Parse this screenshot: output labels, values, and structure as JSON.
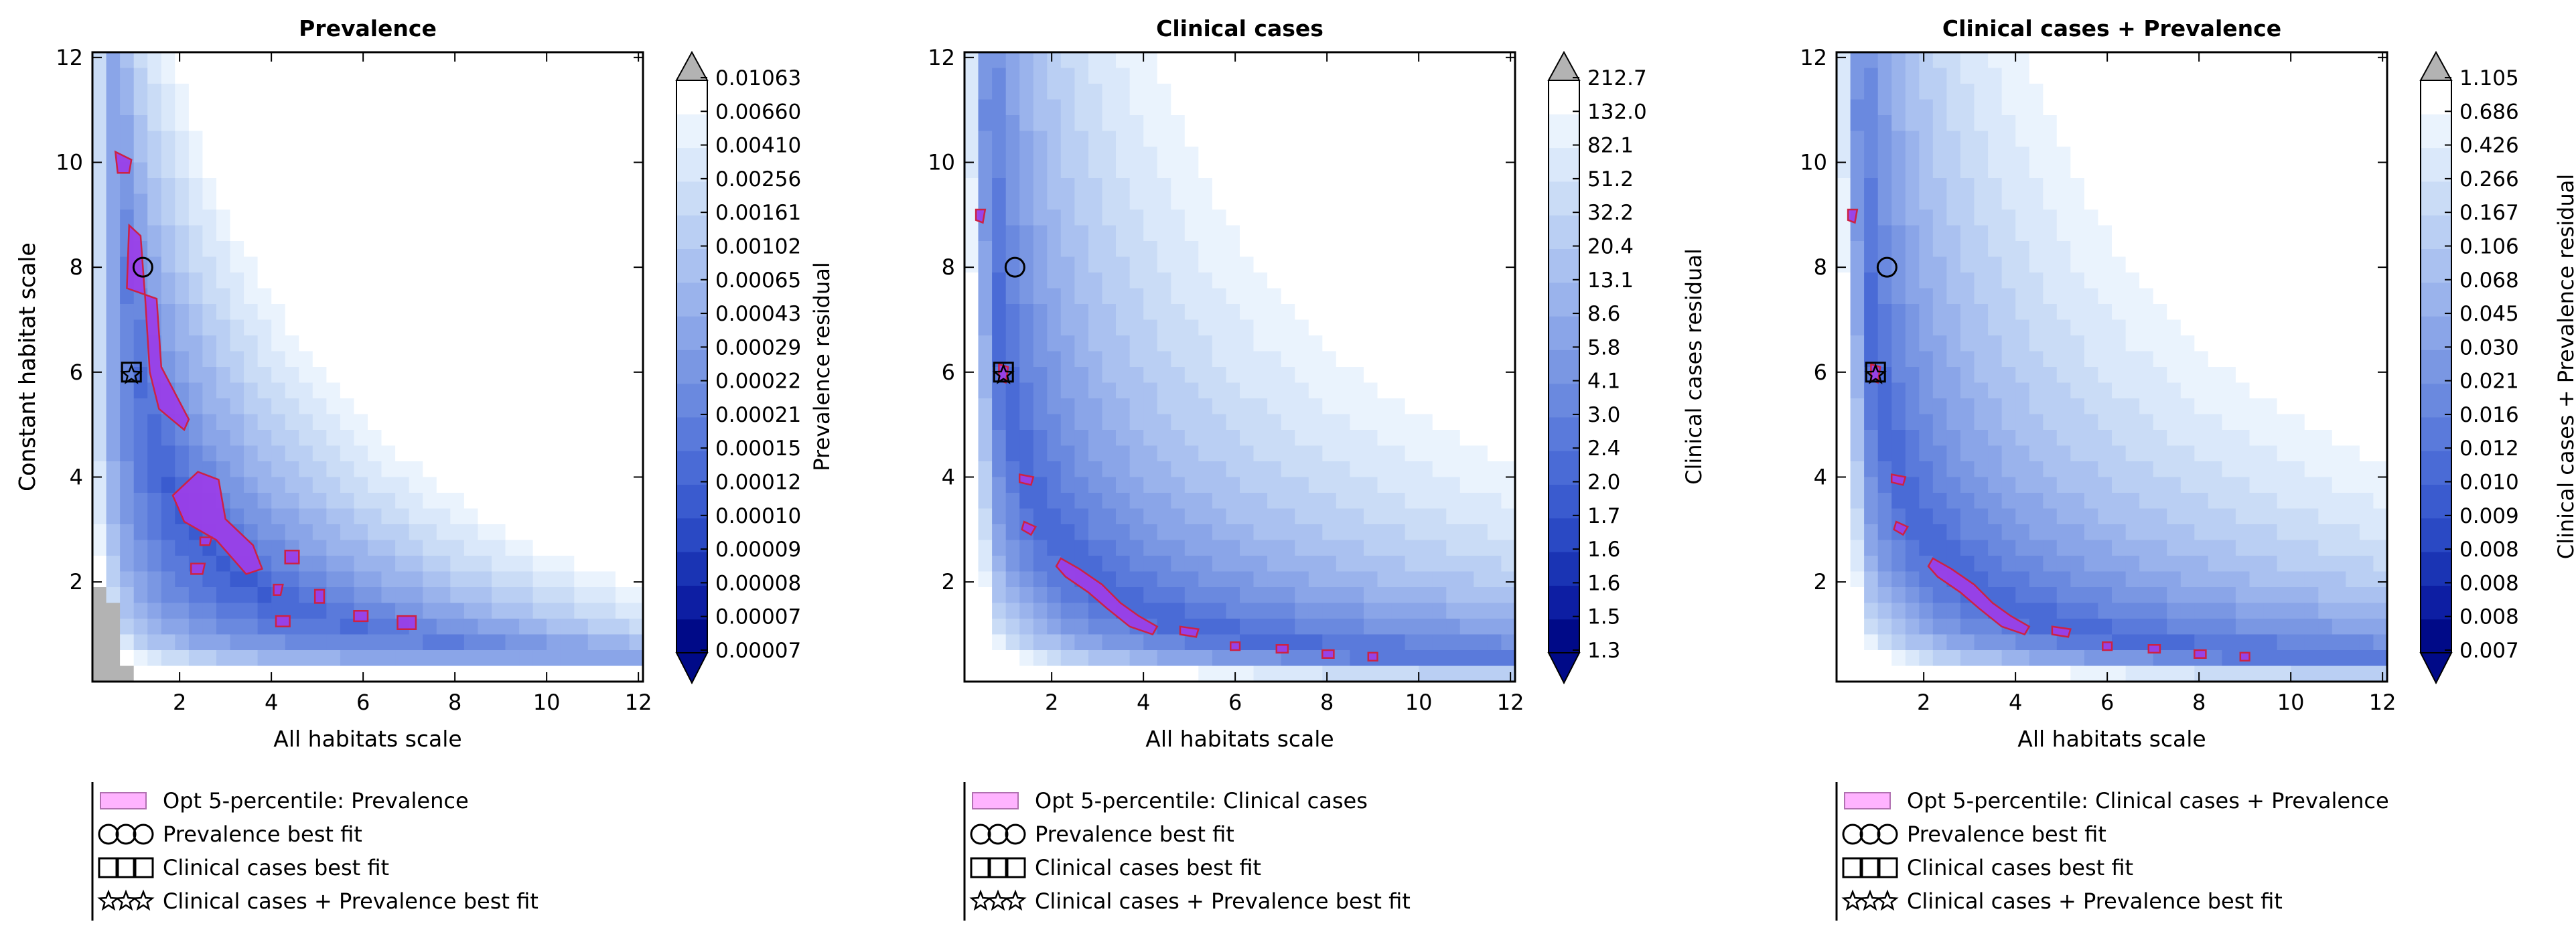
{
  "colors": {
    "level_palette": [
      "#000a88",
      "#0d1ea3",
      "#1a34b4",
      "#2a49c4",
      "#3a5bcf",
      "#4a6bd6",
      "#5a7adb",
      "#6a89df",
      "#7a97e3",
      "#8aa5e8",
      "#9ab3ec",
      "#aac1f0",
      "#bacff3",
      "#cadcf6",
      "#dae8fa",
      "#eaf3fd",
      "#ffffff"
    ],
    "over_color": "#b3b3b3",
    "region_fill": "#9a3fe8",
    "region_edge": "#cc2244",
    "legend_patch_fill": "#ffb3ff",
    "legend_patch_edge": "#b070b0"
  },
  "chart_data": [
    {
      "type": "heatmap",
      "title": "Prevalence",
      "xlabel": "All habitats scale",
      "ylabel": "Constant habitat scale",
      "xlim": [
        0.1,
        12.1
      ],
      "ylim": [
        0.1,
        12.1
      ],
      "xticks": [
        2,
        4,
        6,
        8,
        10,
        12
      ],
      "yticks": [
        2,
        4,
        6,
        8,
        10,
        12
      ],
      "colorbar_label": "Prevalence residual",
      "colorbar_ticks": [
        "0.01063",
        "0.00660",
        "0.00410",
        "0.00256",
        "0.00161",
        "0.00102",
        "0.00065",
        "0.00043",
        "0.00029",
        "0.00022",
        "0.00021",
        "0.00015",
        "0.00012",
        "0.00010",
        "0.00009",
        "0.00008",
        "0.00007",
        "0.00007"
      ],
      "field": {
        "valley_k": 7.0,
        "valley_width": 0.55,
        "edge_low_x": 0.0,
        "base": 0.05,
        "gain": 0.7,
        "over_corner": true
      },
      "opt_regions": [
        {
          "points": [
            [
              0.85,
              7.6
            ],
            [
              0.9,
              8.8
            ],
            [
              1.15,
              8.6
            ],
            [
              1.25,
              7.4
            ],
            [
              1.35,
              6.0
            ],
            [
              1.55,
              5.3
            ],
            [
              2.1,
              4.9
            ],
            [
              2.2,
              5.1
            ],
            [
              1.6,
              6.1
            ],
            [
              1.5,
              7.4
            ]
          ]
        },
        {
          "points": [
            [
              0.6,
              10.2
            ],
            [
              0.95,
              10.05
            ],
            [
              0.9,
              9.8
            ],
            [
              0.65,
              9.8
            ]
          ]
        },
        {
          "points": [
            [
              1.85,
              3.65
            ],
            [
              2.4,
              4.1
            ],
            [
              2.85,
              3.95
            ],
            [
              3.0,
              3.2
            ],
            [
              3.6,
              2.7
            ],
            [
              3.8,
              2.25
            ],
            [
              3.45,
              2.15
            ],
            [
              2.8,
              2.8
            ],
            [
              2.1,
              3.15
            ]
          ]
        },
        {
          "points": [
            [
              2.25,
              2.35
            ],
            [
              2.55,
              2.35
            ],
            [
              2.5,
              2.15
            ],
            [
              2.25,
              2.15
            ]
          ]
        },
        {
          "points": [
            [
              2.45,
              2.85
            ],
            [
              2.7,
              2.85
            ],
            [
              2.65,
              2.7
            ],
            [
              2.45,
              2.7
            ]
          ]
        },
        {
          "points": [
            [
              4.3,
              2.6
            ],
            [
              4.6,
              2.6
            ],
            [
              4.6,
              2.35
            ],
            [
              4.3,
              2.35
            ]
          ]
        },
        {
          "points": [
            [
              4.05,
              1.95
            ],
            [
              4.25,
              1.95
            ],
            [
              4.2,
              1.75
            ],
            [
              4.05,
              1.75
            ]
          ]
        },
        {
          "points": [
            [
              4.95,
              1.85
            ],
            [
              5.15,
              1.85
            ],
            [
              5.15,
              1.6
            ],
            [
              4.95,
              1.6
            ]
          ]
        },
        {
          "points": [
            [
              4.1,
              1.35
            ],
            [
              4.4,
              1.35
            ],
            [
              4.4,
              1.15
            ],
            [
              4.1,
              1.15
            ]
          ]
        },
        {
          "points": [
            [
              5.8,
              1.45
            ],
            [
              6.1,
              1.45
            ],
            [
              6.1,
              1.25
            ],
            [
              5.8,
              1.25
            ]
          ]
        },
        {
          "points": [
            [
              6.75,
              1.35
            ],
            [
              7.15,
              1.35
            ],
            [
              7.15,
              1.1
            ],
            [
              6.75,
              1.1
            ]
          ]
        }
      ],
      "markers": {
        "prevalence_best_fit": [
          1.2,
          8.0
        ],
        "clinical_cases_best_fit": [
          0.95,
          6.0
        ],
        "combined_best_fit": [
          0.95,
          5.95
        ]
      },
      "legend": [
        {
          "kind": "patch",
          "label": "Opt 5-percentile: Prevalence"
        },
        {
          "kind": "circle",
          "label": "Prevalence best fit"
        },
        {
          "kind": "square",
          "label": "Clinical cases best fit"
        },
        {
          "kind": "star",
          "label": "Clinical cases + Prevalence best fit"
        }
      ]
    },
    {
      "type": "heatmap",
      "title": "Clinical cases",
      "xlabel": "All habitats scale",
      "ylabel": "Constant habitat scale",
      "xlim": [
        0.1,
        12.1
      ],
      "ylim": [
        0.1,
        12.1
      ],
      "xticks": [
        2,
        4,
        6,
        8,
        10,
        12
      ],
      "yticks": [
        2,
        4,
        6,
        8,
        10,
        12
      ],
      "colorbar_label": "Clinical cases residual",
      "colorbar_ticks": [
        "212.7",
        "132.0",
        "82.1",
        "51.2",
        "32.2",
        "20.4",
        "13.1",
        "8.6",
        "5.8",
        "4.1",
        "3.0",
        "2.4",
        "2.0",
        "1.7",
        "1.6",
        "1.6",
        "1.5",
        "1.3"
      ],
      "field": {
        "valley_k": 6.0,
        "valley_width": 0.5,
        "edge_low_x": 0.6,
        "base": 0.28,
        "gain": 0.05,
        "over_corner": false
      },
      "opt_regions": [
        {
          "points": [
            [
              0.35,
              9.1
            ],
            [
              0.55,
              9.1
            ],
            [
              0.5,
              8.85
            ],
            [
              0.35,
              8.9
            ]
          ]
        },
        {
          "points": [
            [
              0.85,
              6.15
            ],
            [
              1.05,
              6.1
            ],
            [
              1.0,
              5.8
            ],
            [
              0.85,
              5.85
            ]
          ]
        },
        {
          "points": [
            [
              1.3,
              4.05
            ],
            [
              1.6,
              4.0
            ],
            [
              1.55,
              3.85
            ],
            [
              1.3,
              3.9
            ]
          ]
        },
        {
          "points": [
            [
              1.4,
              3.15
            ],
            [
              1.65,
              3.05
            ],
            [
              1.55,
              2.9
            ],
            [
              1.35,
              3.0
            ]
          ]
        },
        {
          "points": [
            [
              2.2,
              2.45
            ],
            [
              2.6,
              2.25
            ],
            [
              3.1,
              1.95
            ],
            [
              3.5,
              1.6
            ],
            [
              3.9,
              1.35
            ],
            [
              4.3,
              1.15
            ],
            [
              4.2,
              1.0
            ],
            [
              3.7,
              1.15
            ],
            [
              3.2,
              1.5
            ],
            [
              2.8,
              1.8
            ],
            [
              2.3,
              2.1
            ],
            [
              2.1,
              2.3
            ]
          ]
        },
        {
          "points": [
            [
              4.8,
              1.15
            ],
            [
              5.2,
              1.1
            ],
            [
              5.15,
              0.95
            ],
            [
              4.8,
              1.0
            ]
          ]
        },
        {
          "points": [
            [
              5.9,
              0.85
            ],
            [
              6.1,
              0.85
            ],
            [
              6.1,
              0.7
            ],
            [
              5.9,
              0.7
            ]
          ]
        },
        {
          "points": [
            [
              6.9,
              0.8
            ],
            [
              7.15,
              0.8
            ],
            [
              7.15,
              0.65
            ],
            [
              6.9,
              0.65
            ]
          ]
        },
        {
          "points": [
            [
              7.9,
              0.7
            ],
            [
              8.15,
              0.7
            ],
            [
              8.15,
              0.55
            ],
            [
              7.9,
              0.55
            ]
          ]
        },
        {
          "points": [
            [
              8.9,
              0.65
            ],
            [
              9.1,
              0.65
            ],
            [
              9.1,
              0.5
            ],
            [
              8.9,
              0.5
            ]
          ]
        }
      ],
      "markers": {
        "prevalence_best_fit": [
          1.2,
          8.0
        ],
        "clinical_cases_best_fit": [
          0.95,
          6.0
        ],
        "combined_best_fit": [
          0.95,
          5.95
        ]
      },
      "legend": [
        {
          "kind": "patch",
          "label": "Opt 5-percentile: Clinical cases"
        },
        {
          "kind": "circle",
          "label": "Prevalence best fit"
        },
        {
          "kind": "square",
          "label": "Clinical cases best fit"
        },
        {
          "kind": "star",
          "label": "Clinical cases + Prevalence best fit"
        }
      ]
    },
    {
      "type": "heatmap",
      "title": "Clinical cases + Prevalence",
      "xlabel": "All habitats scale",
      "ylabel": "Constant habitat scale",
      "xlim": [
        0.1,
        12.1
      ],
      "ylim": [
        0.1,
        12.1
      ],
      "xticks": [
        2,
        4,
        6,
        8,
        10,
        12
      ],
      "yticks": [
        2,
        4,
        6,
        8,
        10,
        12
      ],
      "colorbar_label": "Clinical cases + Prevalence residual",
      "colorbar_ticks": [
        "1.105",
        "0.686",
        "0.426",
        "0.266",
        "0.167",
        "0.106",
        "0.068",
        "0.045",
        "0.030",
        "0.021",
        "0.016",
        "0.012",
        "0.010",
        "0.009",
        "0.008",
        "0.008",
        "0.008",
        "0.007"
      ],
      "field": {
        "valley_k": 6.0,
        "valley_width": 0.5,
        "edge_low_x": 0.6,
        "base": 0.28,
        "gain": 0.05,
        "over_corner": false
      },
      "opt_regions": [
        {
          "points": [
            [
              0.35,
              9.1
            ],
            [
              0.55,
              9.1
            ],
            [
              0.5,
              8.85
            ],
            [
              0.35,
              8.9
            ]
          ]
        },
        {
          "points": [
            [
              0.85,
              6.15
            ],
            [
              1.05,
              6.1
            ],
            [
              1.0,
              5.8
            ],
            [
              0.85,
              5.85
            ]
          ]
        },
        {
          "points": [
            [
              1.3,
              4.05
            ],
            [
              1.6,
              4.0
            ],
            [
              1.55,
              3.85
            ],
            [
              1.3,
              3.9
            ]
          ]
        },
        {
          "points": [
            [
              1.4,
              3.15
            ],
            [
              1.65,
              3.05
            ],
            [
              1.55,
              2.9
            ],
            [
              1.35,
              3.0
            ]
          ]
        },
        {
          "points": [
            [
              2.2,
              2.45
            ],
            [
              2.6,
              2.25
            ],
            [
              3.1,
              1.95
            ],
            [
              3.5,
              1.6
            ],
            [
              3.9,
              1.35
            ],
            [
              4.3,
              1.15
            ],
            [
              4.2,
              1.0
            ],
            [
              3.7,
              1.15
            ],
            [
              3.2,
              1.5
            ],
            [
              2.8,
              1.8
            ],
            [
              2.3,
              2.1
            ],
            [
              2.1,
              2.3
            ]
          ]
        },
        {
          "points": [
            [
              4.8,
              1.15
            ],
            [
              5.2,
              1.1
            ],
            [
              5.15,
              0.95
            ],
            [
              4.8,
              1.0
            ]
          ]
        },
        {
          "points": [
            [
              5.9,
              0.85
            ],
            [
              6.1,
              0.85
            ],
            [
              6.1,
              0.7
            ],
            [
              5.9,
              0.7
            ]
          ]
        },
        {
          "points": [
            [
              6.9,
              0.8
            ],
            [
              7.15,
              0.8
            ],
            [
              7.15,
              0.65
            ],
            [
              6.9,
              0.65
            ]
          ]
        },
        {
          "points": [
            [
              7.9,
              0.7
            ],
            [
              8.15,
              0.7
            ],
            [
              8.15,
              0.55
            ],
            [
              7.9,
              0.55
            ]
          ]
        },
        {
          "points": [
            [
              8.9,
              0.65
            ],
            [
              9.1,
              0.65
            ],
            [
              9.1,
              0.5
            ],
            [
              8.9,
              0.5
            ]
          ]
        }
      ],
      "markers": {
        "prevalence_best_fit": [
          1.2,
          8.0
        ],
        "clinical_cases_best_fit": [
          0.95,
          6.0
        ],
        "combined_best_fit": [
          0.95,
          5.95
        ]
      },
      "legend": [
        {
          "kind": "patch",
          "label": "Opt 5-percentile: Clinical cases + Prevalence"
        },
        {
          "kind": "circle",
          "label": "Prevalence best fit"
        },
        {
          "kind": "square",
          "label": "Clinical cases best fit"
        },
        {
          "kind": "star",
          "label": "Clinical cases + Prevalence best fit"
        }
      ]
    }
  ]
}
